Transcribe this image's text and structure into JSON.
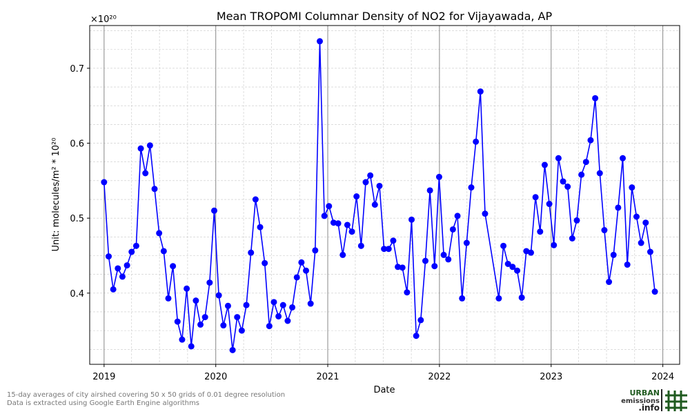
{
  "chart_data": {
    "type": "line",
    "title": "Mean TROPOMI Columnar Density of NO2 for Vijayawada, AP",
    "xlabel": "Date",
    "ylabel": "Unit: molecules/m² * 10²⁰",
    "y_offset_label": "×10²⁰",
    "ylim": [
      0.305,
      0.757
    ],
    "xlim": [
      "2018-11-15",
      "2024-02-25"
    ],
    "x_ticks": [
      "2019",
      "2020",
      "2021",
      "2022",
      "2023",
      "2024"
    ],
    "y_ticks": [
      "0.4",
      "0.5",
      "0.6",
      "0.7"
    ],
    "y_tick_values": [
      0.4,
      0.5,
      0.6,
      0.7
    ],
    "grid": true,
    "year_lines": true,
    "series_color": "#0000ff",
    "series": [
      {
        "x": [
          "2019-01-01",
          "2019-01-16",
          "2019-01-31",
          "2019-02-15",
          "2019-03-02",
          "2019-03-17",
          "2019-04-01",
          "2019-04-16",
          "2019-05-01",
          "2019-05-16",
          "2019-05-31",
          "2019-06-15",
          "2019-06-30",
          "2019-07-15",
          "2019-07-30",
          "2019-08-14",
          "2019-08-29",
          "2019-09-13",
          "2019-09-28",
          "2019-10-13",
          "2019-10-28",
          "2019-11-12",
          "2019-11-27",
          "2019-12-12",
          "2019-12-27",
          "2020-01-11",
          "2020-01-26",
          "2020-02-10",
          "2020-02-25",
          "2020-03-11",
          "2020-03-26",
          "2020-04-10",
          "2020-04-25",
          "2020-05-10",
          "2020-05-25",
          "2020-06-09",
          "2020-06-24",
          "2020-07-09",
          "2020-07-24",
          "2020-08-08",
          "2020-08-23",
          "2020-09-07",
          "2020-09-22",
          "2020-10-07",
          "2020-10-22",
          "2020-11-06",
          "2020-11-21",
          "2020-12-06",
          "2020-12-21",
          "2021-01-05",
          "2021-01-20",
          "2021-02-04",
          "2021-02-19",
          "2021-03-06",
          "2021-03-21",
          "2021-04-05",
          "2021-04-20",
          "2021-05-05",
          "2021-05-20",
          "2021-06-04",
          "2021-06-19",
          "2021-07-04",
          "2021-07-19",
          "2021-08-03",
          "2021-08-18",
          "2021-09-02",
          "2021-09-17",
          "2021-10-02",
          "2021-10-17",
          "2021-11-01",
          "2021-11-16",
          "2021-12-01",
          "2021-12-16",
          "2021-12-31",
          "2022-01-15",
          "2022-01-30",
          "2022-02-14",
          "2022-03-01",
          "2022-03-16",
          "2022-03-31",
          "2022-04-15",
          "2022-04-30",
          "2022-05-15",
          "2022-05-30",
          "2022-07-14",
          "2022-07-29",
          "2022-08-13",
          "2022-08-28",
          "2022-09-12",
          "2022-09-27",
          "2022-10-12",
          "2022-10-27",
          "2022-11-11",
          "2022-11-26",
          "2022-12-11",
          "2022-12-26",
          "2023-01-10",
          "2023-01-25",
          "2023-02-09",
          "2023-02-24",
          "2023-03-11",
          "2023-03-26",
          "2023-04-10",
          "2023-04-25",
          "2023-05-10",
          "2023-05-25",
          "2023-06-09",
          "2023-06-24",
          "2023-07-09",
          "2023-07-24",
          "2023-08-08",
          "2023-08-23",
          "2023-09-07",
          "2023-09-22",
          "2023-10-07",
          "2023-10-22",
          "2023-11-06",
          "2023-11-21",
          "2023-12-06"
        ],
        "y": [
          0.548,
          0.449,
          0.405,
          0.433,
          0.422,
          0.437,
          0.455,
          0.463,
          0.593,
          0.56,
          0.597,
          0.539,
          0.48,
          0.456,
          0.393,
          0.436,
          0.362,
          0.338,
          0.406,
          0.329,
          0.39,
          0.358,
          0.368,
          0.414,
          0.51,
          0.397,
          0.357,
          0.383,
          0.324,
          0.368,
          0.35,
          0.384,
          0.454,
          0.525,
          0.488,
          0.44,
          0.356,
          0.388,
          0.369,
          0.384,
          0.363,
          0.381,
          0.421,
          0.441,
          0.43,
          0.386,
          0.457,
          0.736,
          0.503,
          0.516,
          0.494,
          0.493,
          0.451,
          0.491,
          0.482,
          0.529,
          0.463,
          0.548,
          0.557,
          0.518,
          0.543,
          0.459,
          0.459,
          0.47,
          0.435,
          0.434,
          0.401,
          0.498,
          0.343,
          0.364,
          0.443,
          0.537,
          0.436,
          0.555,
          0.451,
          0.445,
          0.485,
          0.503,
          0.393,
          0.467,
          0.541,
          0.602,
          0.669,
          0.506,
          0.393,
          0.463,
          0.439,
          0.435,
          0.43,
          0.394,
          0.456,
          0.454,
          0.528,
          0.482,
          0.571,
          0.519,
          0.464,
          0.58,
          0.549,
          0.542,
          0.473,
          0.497,
          0.558,
          0.575,
          0.604,
          0.66,
          0.56,
          0.484,
          0.415,
          0.451,
          0.514,
          0.58,
          0.438,
          0.541,
          0.502,
          0.467,
          0.494,
          0.455,
          0.402
        ]
      }
    ]
  },
  "footnote": {
    "line1": "15-day averages of city airshed covering 50 x 50 grids of 0.01 degree resolution",
    "line2": "Data is extracted using Google Earth Engine algorithms"
  },
  "logo": {
    "line1": "URBAN",
    "line2": "emissions",
    "line3": ".info",
    "color_green": "#1f5a1f",
    "color_dark": "#222222"
  }
}
